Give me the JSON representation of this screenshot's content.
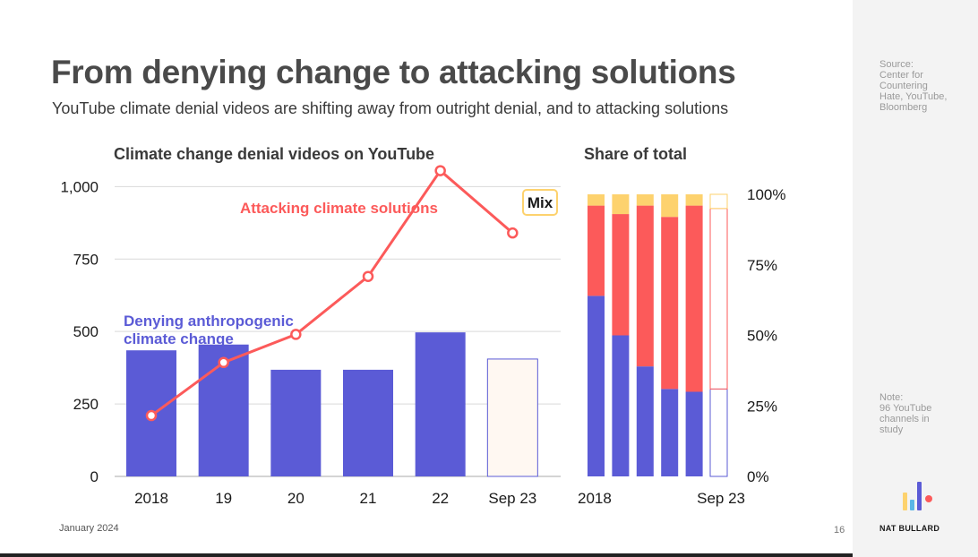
{
  "slide": {
    "title": "From denying change to attacking solutions",
    "subtitle": "YouTube climate denial videos are shifting away from outright denial, and to attacking solutions",
    "date": "January 2024",
    "page_number": "16",
    "brand": "NAT BULLARD"
  },
  "sidebar": {
    "source_lines": [
      "Source:",
      "Center for",
      "Countering",
      "Hate, YouTube,",
      "Bloomberg"
    ],
    "note_lines": [
      "Note:",
      "96 YouTube",
      "channels in",
      "study"
    ]
  },
  "colors": {
    "denial": "#5b5bd6",
    "solutions": "#fc5a5a",
    "mix": "#fdd26e",
    "projected_fill": "#fff8f2",
    "grid": "#d9d9d9",
    "title": "#4a4a4a"
  },
  "chart_data": [
    {
      "type": "bar",
      "title": "Climate change denial videos on YouTube",
      "categories": [
        "2018",
        "19",
        "20",
        "21",
        "22",
        "Sep 23"
      ],
      "ylim": [
        0,
        1100
      ],
      "yticks": [
        0,
        250,
        500,
        750,
        1000
      ],
      "ytick_labels": [
        "0",
        "250",
        "500",
        "750",
        "1,000"
      ],
      "grid": true,
      "series": [
        {
          "name": "Denying anthropogenic climate change",
          "label_lines": [
            "Denying anthropogenic",
            "climate change"
          ],
          "type": "bar",
          "values": [
            435,
            455,
            368,
            368,
            497,
            405
          ],
          "projected_index": 5
        },
        {
          "name": "Attacking climate solutions",
          "type": "line",
          "values": [
            210,
            393,
            490,
            690,
            1055,
            840
          ]
        }
      ],
      "annotations": [
        "Mix"
      ]
    },
    {
      "type": "bar",
      "stacked": true,
      "title": "Share of total",
      "x_labels": [
        "2018",
        "Sep 23"
      ],
      "bar_count": 6,
      "ylim": [
        0,
        100
      ],
      "yticks": [
        0,
        25,
        50,
        75,
        100
      ],
      "ytick_labels": [
        "0%",
        "25%",
        "50%",
        "75%",
        "100%"
      ],
      "projected_index": 5,
      "series": [
        {
          "key": "denial",
          "values": [
            64,
            50,
            39,
            31,
            30,
            31
          ]
        },
        {
          "key": "solutions",
          "values": [
            32,
            43,
            57,
            61,
            66,
            64
          ]
        },
        {
          "key": "mix",
          "values": [
            4,
            7,
            4,
            8,
            4,
            5
          ]
        }
      ]
    }
  ]
}
